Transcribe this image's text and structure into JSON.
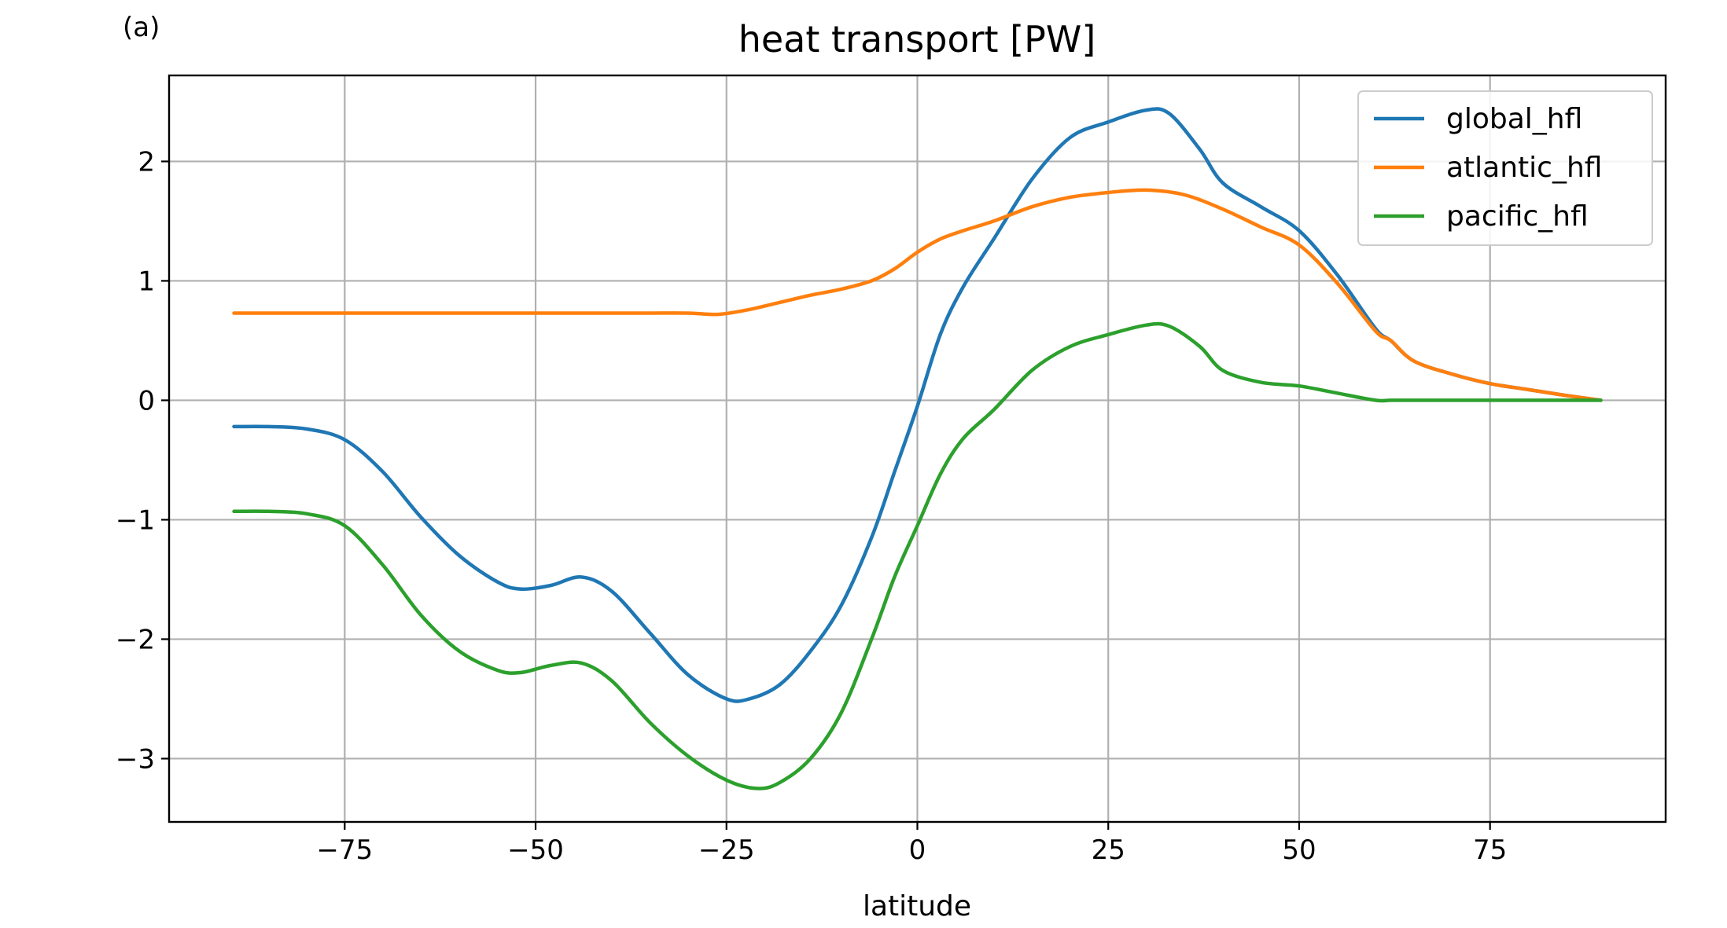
{
  "panel_label": "(a)",
  "chart_data": {
    "type": "line",
    "title": "heat transport [PW]",
    "xlabel": "latitude",
    "ylabel": "",
    "xlim": [
      -98,
      98
    ],
    "ylim": [
      -3.53,
      2.72
    ],
    "xticks": [
      -75,
      -50,
      -25,
      0,
      25,
      50,
      75
    ],
    "xtick_labels": [
      "−75",
      "−50",
      "−25",
      "0",
      "25",
      "50",
      "75"
    ],
    "yticks": [
      -3,
      -2,
      -1,
      0,
      1,
      2
    ],
    "ytick_labels": [
      "−3",
      "−2",
      "−1",
      "0",
      "1",
      "2"
    ],
    "grid": true,
    "legend_position": "top-right",
    "series": [
      {
        "name": "global_hfl",
        "color": "#1f77b4",
        "x": [
          -89.5,
          -85,
          -80,
          -75,
          -70,
          -65,
          -60,
          -55,
          -52,
          -48,
          -44,
          -40,
          -35,
          -30,
          -25,
          -22,
          -18,
          -14,
          -10,
          -6,
          -3,
          0,
          3,
          6,
          10,
          15,
          20,
          25,
          30,
          33,
          37,
          40,
          45,
          50,
          55,
          60,
          62,
          65,
          70,
          75,
          80,
          85,
          89.5
        ],
        "y": [
          -0.22,
          -0.22,
          -0.24,
          -0.33,
          -0.6,
          -0.98,
          -1.3,
          -1.52,
          -1.58,
          -1.55,
          -1.48,
          -1.6,
          -1.95,
          -2.3,
          -2.5,
          -2.5,
          -2.38,
          -2.1,
          -1.72,
          -1.15,
          -0.6,
          -0.05,
          0.55,
          0.95,
          1.35,
          1.85,
          2.2,
          2.33,
          2.43,
          2.4,
          2.1,
          1.82,
          1.62,
          1.42,
          1.05,
          0.6,
          0.5,
          0.33,
          0.22,
          0.14,
          0.09,
          0.04,
          0.0
        ]
      },
      {
        "name": "atlantic_hfl",
        "color": "#ff7f0e",
        "x": [
          -89.5,
          -80,
          -70,
          -60,
          -50,
          -40,
          -35,
          -30,
          -26,
          -22,
          -18,
          -14,
          -10,
          -6,
          -3,
          0,
          3,
          6,
          10,
          15,
          20,
          25,
          30,
          35,
          40,
          45,
          50,
          55,
          60,
          62,
          65,
          70,
          75,
          80,
          85,
          89.5
        ],
        "y": [
          0.73,
          0.73,
          0.73,
          0.73,
          0.73,
          0.73,
          0.73,
          0.73,
          0.72,
          0.76,
          0.82,
          0.88,
          0.93,
          1.0,
          1.1,
          1.24,
          1.35,
          1.42,
          1.5,
          1.62,
          1.7,
          1.74,
          1.76,
          1.72,
          1.6,
          1.45,
          1.3,
          0.98,
          0.58,
          0.5,
          0.33,
          0.22,
          0.14,
          0.09,
          0.04,
          0.0
        ]
      },
      {
        "name": "pacific_hfl",
        "color": "#2ca02c",
        "x": [
          -89.5,
          -85,
          -80,
          -75,
          -70,
          -65,
          -60,
          -55,
          -52,
          -48,
          -44,
          -40,
          -35,
          -30,
          -25,
          -21,
          -18,
          -14,
          -10,
          -6,
          -3,
          0,
          3,
          6,
          10,
          15,
          20,
          25,
          30,
          33,
          37,
          40,
          45,
          50,
          55,
          60,
          62,
          65,
          70,
          75,
          80,
          85,
          89.5
        ],
        "y": [
          -0.93,
          -0.93,
          -0.95,
          -1.05,
          -1.38,
          -1.8,
          -2.1,
          -2.26,
          -2.28,
          -2.22,
          -2.2,
          -2.35,
          -2.7,
          -2.98,
          -3.18,
          -3.25,
          -3.2,
          -3.0,
          -2.62,
          -2.0,
          -1.48,
          -1.05,
          -0.62,
          -0.32,
          -0.08,
          0.25,
          0.45,
          0.55,
          0.63,
          0.62,
          0.45,
          0.25,
          0.15,
          0.12,
          0.06,
          0.0,
          0.0,
          0.0,
          0.0,
          0.0,
          0.0,
          0.0,
          0.0
        ]
      }
    ]
  }
}
